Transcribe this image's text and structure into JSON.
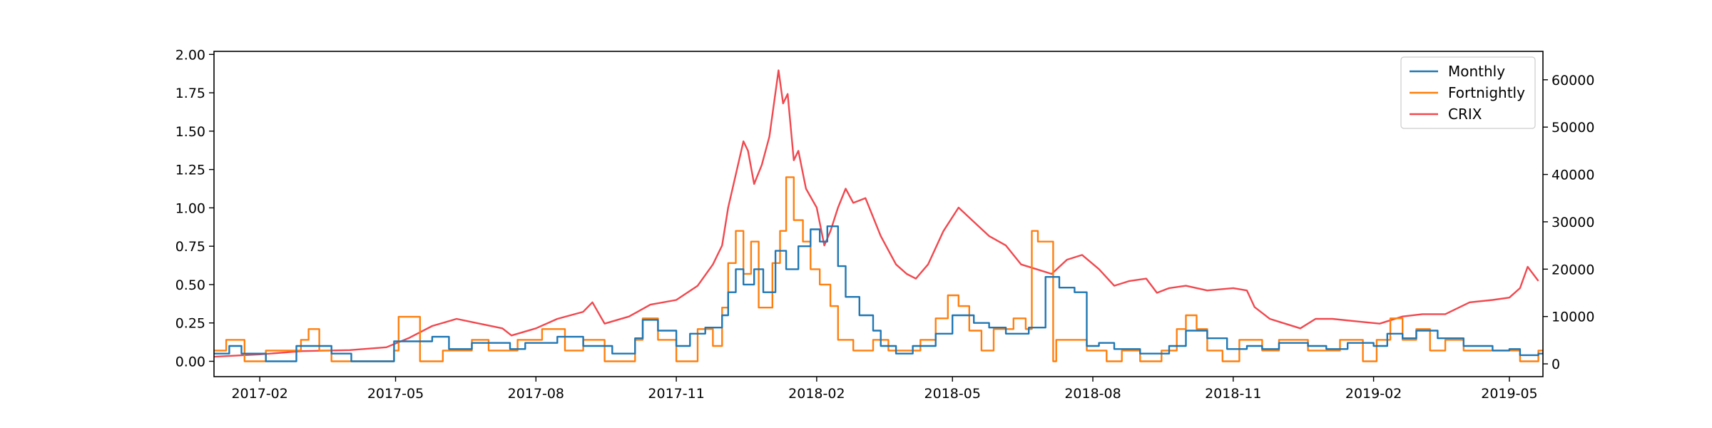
{
  "chart_data": {
    "type": "line",
    "title": "",
    "xlabel": "",
    "ylabel": "",
    "y2label": "",
    "grid": false,
    "legend_position": "top-right",
    "x_range": [
      "2017-01-02",
      "2019-05-23"
    ],
    "ylim": [
      -0.1,
      2.02
    ],
    "y2lim": [
      -2700,
      66000
    ],
    "x_ticks": [
      {
        "date": "2017-02-01",
        "label": "2017-02"
      },
      {
        "date": "2017-05-01",
        "label": "2017-05"
      },
      {
        "date": "2017-08-01",
        "label": "2017-08"
      },
      {
        "date": "2017-11-01",
        "label": "2017-11"
      },
      {
        "date": "2018-02-01",
        "label": "2018-02"
      },
      {
        "date": "2018-05-01",
        "label": "2018-05"
      },
      {
        "date": "2018-08-01",
        "label": "2018-08"
      },
      {
        "date": "2018-11-01",
        "label": "2018-11"
      },
      {
        "date": "2019-02-01",
        "label": "2019-02"
      },
      {
        "date": "2019-05-01",
        "label": "2019-05"
      }
    ],
    "y_ticks": [
      {
        "value": 0,
        "label": "0.00"
      },
      {
        "value": 0.25,
        "label": "0.25"
      },
      {
        "value": 0.5,
        "label": "0.50"
      },
      {
        "value": 0.75,
        "label": "0.75"
      },
      {
        "value": 1.0,
        "label": "1.00"
      },
      {
        "value": 1.25,
        "label": "1.25"
      },
      {
        "value": 1.5,
        "label": "1.50"
      },
      {
        "value": 1.75,
        "label": "1.75"
      },
      {
        "value": 2.0,
        "label": "2.00"
      }
    ],
    "y2_ticks": [
      {
        "value": 0,
        "label": "0"
      },
      {
        "value": 10000,
        "label": "10000"
      },
      {
        "value": 20000,
        "label": "20000"
      },
      {
        "value": 30000,
        "label": "30000"
      },
      {
        "value": 40000,
        "label": "40000"
      },
      {
        "value": 50000,
        "label": "50000"
      },
      {
        "value": 60000,
        "label": "60000"
      }
    ],
    "series": [
      {
        "name": "Monthly",
        "color": "#1f77b4",
        "axis": "left",
        "step": true,
        "points": [
          [
            "2017-01-02",
            0.05
          ],
          [
            "2017-01-12",
            0.1
          ],
          [
            "2017-01-20",
            0.05
          ],
          [
            "2017-02-05",
            0.0
          ],
          [
            "2017-02-25",
            0.1
          ],
          [
            "2017-03-20",
            0.05
          ],
          [
            "2017-04-02",
            0.0
          ],
          [
            "2017-04-30",
            0.13
          ],
          [
            "2017-05-25",
            0.16
          ],
          [
            "2017-06-05",
            0.08
          ],
          [
            "2017-06-20",
            0.12
          ],
          [
            "2017-07-15",
            0.08
          ],
          [
            "2017-07-25",
            0.12
          ],
          [
            "2017-08-15",
            0.16
          ],
          [
            "2017-09-01",
            0.1
          ],
          [
            "2017-09-20",
            0.05
          ],
          [
            "2017-10-05",
            0.15
          ],
          [
            "2017-10-10",
            0.27
          ],
          [
            "2017-10-20",
            0.2
          ],
          [
            "2017-11-01",
            0.1
          ],
          [
            "2017-11-10",
            0.18
          ],
          [
            "2017-11-20",
            0.22
          ],
          [
            "2017-12-01",
            0.3
          ],
          [
            "2017-12-05",
            0.45
          ],
          [
            "2017-12-10",
            0.6
          ],
          [
            "2017-12-15",
            0.5
          ],
          [
            "2017-12-22",
            0.6
          ],
          [
            "2017-12-28",
            0.45
          ],
          [
            "2018-01-05",
            0.72
          ],
          [
            "2018-01-12",
            0.6
          ],
          [
            "2018-01-20",
            0.75
          ],
          [
            "2018-01-28",
            0.86
          ],
          [
            "2018-02-03",
            0.78
          ],
          [
            "2018-02-08",
            0.88
          ],
          [
            "2018-02-15",
            0.62
          ],
          [
            "2018-02-20",
            0.42
          ],
          [
            "2018-03-01",
            0.3
          ],
          [
            "2018-03-10",
            0.2
          ],
          [
            "2018-03-15",
            0.1
          ],
          [
            "2018-03-25",
            0.05
          ],
          [
            "2018-04-05",
            0.1
          ],
          [
            "2018-04-20",
            0.18
          ],
          [
            "2018-05-01",
            0.3
          ],
          [
            "2018-05-15",
            0.25
          ],
          [
            "2018-05-25",
            0.22
          ],
          [
            "2018-06-05",
            0.18
          ],
          [
            "2018-06-20",
            0.22
          ],
          [
            "2018-07-01",
            0.55
          ],
          [
            "2018-07-10",
            0.48
          ],
          [
            "2018-07-20",
            0.45
          ],
          [
            "2018-07-28",
            0.1
          ],
          [
            "2018-08-05",
            0.12
          ],
          [
            "2018-08-15",
            0.08
          ],
          [
            "2018-09-01",
            0.05
          ],
          [
            "2018-09-20",
            0.1
          ],
          [
            "2018-10-01",
            0.2
          ],
          [
            "2018-10-15",
            0.15
          ],
          [
            "2018-10-28",
            0.08
          ],
          [
            "2018-11-10",
            0.1
          ],
          [
            "2018-11-20",
            0.08
          ],
          [
            "2018-12-01",
            0.12
          ],
          [
            "2018-12-20",
            0.1
          ],
          [
            "2019-01-01",
            0.08
          ],
          [
            "2019-01-15",
            0.12
          ],
          [
            "2019-02-01",
            0.1
          ],
          [
            "2019-02-10",
            0.18
          ],
          [
            "2019-02-20",
            0.15
          ],
          [
            "2019-03-01",
            0.2
          ],
          [
            "2019-03-15",
            0.15
          ],
          [
            "2019-04-01",
            0.1
          ],
          [
            "2019-04-20",
            0.07
          ],
          [
            "2019-05-01",
            0.08
          ],
          [
            "2019-05-08",
            0.04
          ],
          [
            "2019-05-20",
            0.05
          ]
        ]
      },
      {
        "name": "Fortnightly",
        "color": "#ff7f0e",
        "axis": "left",
        "step": true,
        "points": [
          [
            "2017-01-02",
            0.07
          ],
          [
            "2017-01-10",
            0.14
          ],
          [
            "2017-01-22",
            0.0
          ],
          [
            "2017-02-05",
            0.07
          ],
          [
            "2017-02-28",
            0.14
          ],
          [
            "2017-03-05",
            0.21
          ],
          [
            "2017-03-12",
            0.07
          ],
          [
            "2017-03-20",
            0.0
          ],
          [
            "2017-04-30",
            0.07
          ],
          [
            "2017-05-03",
            0.29
          ],
          [
            "2017-05-17",
            0.0
          ],
          [
            "2017-06-01",
            0.07
          ],
          [
            "2017-06-20",
            0.14
          ],
          [
            "2017-07-01",
            0.07
          ],
          [
            "2017-07-20",
            0.14
          ],
          [
            "2017-08-05",
            0.21
          ],
          [
            "2017-08-20",
            0.07
          ],
          [
            "2017-09-01",
            0.14
          ],
          [
            "2017-09-15",
            0.0
          ],
          [
            "2017-10-05",
            0.14
          ],
          [
            "2017-10-10",
            0.28
          ],
          [
            "2017-10-20",
            0.14
          ],
          [
            "2017-11-01",
            0.0
          ],
          [
            "2017-11-15",
            0.21
          ],
          [
            "2017-11-25",
            0.1
          ],
          [
            "2017-12-01",
            0.35
          ],
          [
            "2017-12-05",
            0.64
          ],
          [
            "2017-12-10",
            0.85
          ],
          [
            "2017-12-15",
            0.57
          ],
          [
            "2017-12-20",
            0.78
          ],
          [
            "2017-12-25",
            0.35
          ],
          [
            "2018-01-03",
            0.64
          ],
          [
            "2018-01-08",
            0.85
          ],
          [
            "2018-01-12",
            1.2
          ],
          [
            "2018-01-17",
            0.92
          ],
          [
            "2018-01-23",
            0.78
          ],
          [
            "2018-01-28",
            0.6
          ],
          [
            "2018-02-03",
            0.5
          ],
          [
            "2018-02-10",
            0.36
          ],
          [
            "2018-02-15",
            0.14
          ],
          [
            "2018-02-25",
            0.07
          ],
          [
            "2018-03-10",
            0.14
          ],
          [
            "2018-03-20",
            0.07
          ],
          [
            "2018-04-10",
            0.14
          ],
          [
            "2018-04-20",
            0.28
          ],
          [
            "2018-04-28",
            0.43
          ],
          [
            "2018-05-05",
            0.36
          ],
          [
            "2018-05-12",
            0.2
          ],
          [
            "2018-05-20",
            0.07
          ],
          [
            "2018-05-28",
            0.21
          ],
          [
            "2018-06-10",
            0.28
          ],
          [
            "2018-06-18",
            0.21
          ],
          [
            "2018-06-22",
            0.85
          ],
          [
            "2018-06-26",
            0.78
          ],
          [
            "2018-07-02",
            0.78
          ],
          [
            "2018-07-06",
            0.0
          ],
          [
            "2018-07-08",
            0.14
          ],
          [
            "2018-07-20",
            0.14
          ],
          [
            "2018-07-28",
            0.07
          ],
          [
            "2018-08-10",
            0.0
          ],
          [
            "2018-08-20",
            0.07
          ],
          [
            "2018-09-01",
            0.0
          ],
          [
            "2018-09-15",
            0.07
          ],
          [
            "2018-09-25",
            0.21
          ],
          [
            "2018-10-01",
            0.3
          ],
          [
            "2018-10-08",
            0.21
          ],
          [
            "2018-10-15",
            0.07
          ],
          [
            "2018-10-25",
            0.0
          ],
          [
            "2018-11-05",
            0.14
          ],
          [
            "2018-11-20",
            0.07
          ],
          [
            "2018-12-01",
            0.14
          ],
          [
            "2018-12-20",
            0.07
          ],
          [
            "2019-01-10",
            0.14
          ],
          [
            "2019-01-25",
            0.0
          ],
          [
            "2019-02-03",
            0.14
          ],
          [
            "2019-02-12",
            0.28
          ],
          [
            "2019-02-20",
            0.14
          ],
          [
            "2019-03-01",
            0.21
          ],
          [
            "2019-03-10",
            0.07
          ],
          [
            "2019-03-20",
            0.14
          ],
          [
            "2019-04-01",
            0.07
          ],
          [
            "2019-04-20",
            0.07
          ],
          [
            "2019-05-01",
            0.07
          ],
          [
            "2019-05-08",
            0.0
          ],
          [
            "2019-05-20",
            0.07
          ]
        ]
      },
      {
        "name": "CRIX",
        "color": "#f0484e",
        "axis": "right",
        "step": false,
        "points": [
          [
            "2017-01-02",
            1500
          ],
          [
            "2017-02-01",
            2000
          ],
          [
            "2017-03-01",
            2700
          ],
          [
            "2017-04-01",
            2900
          ],
          [
            "2017-04-25",
            3500
          ],
          [
            "2017-05-10",
            5500
          ],
          [
            "2017-05-25",
            8000
          ],
          [
            "2017-06-10",
            9500
          ],
          [
            "2017-06-25",
            8500
          ],
          [
            "2017-07-10",
            7500
          ],
          [
            "2017-07-16",
            6000
          ],
          [
            "2017-08-01",
            7500
          ],
          [
            "2017-08-15",
            9500
          ],
          [
            "2017-09-01",
            11000
          ],
          [
            "2017-09-07",
            13000
          ],
          [
            "2017-09-15",
            8500
          ],
          [
            "2017-10-01",
            10000
          ],
          [
            "2017-10-15",
            12500
          ],
          [
            "2017-11-01",
            13500
          ],
          [
            "2017-11-15",
            16500
          ],
          [
            "2017-11-25",
            21000
          ],
          [
            "2017-12-01",
            25000
          ],
          [
            "2017-12-05",
            33000
          ],
          [
            "2017-12-10",
            40000
          ],
          [
            "2017-12-15",
            47000
          ],
          [
            "2017-12-18",
            45000
          ],
          [
            "2017-12-22",
            38000
          ],
          [
            "2017-12-27",
            42000
          ],
          [
            "2018-01-01",
            48000
          ],
          [
            "2018-01-04",
            55000
          ],
          [
            "2018-01-07",
            62000
          ],
          [
            "2018-01-10",
            55000
          ],
          [
            "2018-01-13",
            57000
          ],
          [
            "2018-01-17",
            43000
          ],
          [
            "2018-01-20",
            45000
          ],
          [
            "2018-01-25",
            37000
          ],
          [
            "2018-02-01",
            33000
          ],
          [
            "2018-02-06",
            25000
          ],
          [
            "2018-02-10",
            28000
          ],
          [
            "2018-02-15",
            33000
          ],
          [
            "2018-02-20",
            37000
          ],
          [
            "2018-02-25",
            34000
          ],
          [
            "2018-03-05",
            35000
          ],
          [
            "2018-03-15",
            27000
          ],
          [
            "2018-03-25",
            21000
          ],
          [
            "2018-04-01",
            19000
          ],
          [
            "2018-04-07",
            18000
          ],
          [
            "2018-04-15",
            21000
          ],
          [
            "2018-04-25",
            28000
          ],
          [
            "2018-05-05",
            33000
          ],
          [
            "2018-05-15",
            30000
          ],
          [
            "2018-05-25",
            27000
          ],
          [
            "2018-06-05",
            25000
          ],
          [
            "2018-06-15",
            21000
          ],
          [
            "2018-06-25",
            20000
          ],
          [
            "2018-07-05",
            19000
          ],
          [
            "2018-07-15",
            22000
          ],
          [
            "2018-07-25",
            23000
          ],
          [
            "2018-08-05",
            20000
          ],
          [
            "2018-08-15",
            16500
          ],
          [
            "2018-08-25",
            17500
          ],
          [
            "2018-09-05",
            18000
          ],
          [
            "2018-09-12",
            15000
          ],
          [
            "2018-09-20",
            16000
          ],
          [
            "2018-10-01",
            16500
          ],
          [
            "2018-10-15",
            15500
          ],
          [
            "2018-11-01",
            16000
          ],
          [
            "2018-11-10",
            15500
          ],
          [
            "2018-11-15",
            12000
          ],
          [
            "2018-11-25",
            9500
          ],
          [
            "2018-12-05",
            8500
          ],
          [
            "2018-12-15",
            7500
          ],
          [
            "2018-12-25",
            9500
          ],
          [
            "2019-01-05",
            9500
          ],
          [
            "2019-01-20",
            9000
          ],
          [
            "2019-02-05",
            8500
          ],
          [
            "2019-02-20",
            10000
          ],
          [
            "2019-03-05",
            10500
          ],
          [
            "2019-03-20",
            10500
          ],
          [
            "2019-04-05",
            13000
          ],
          [
            "2019-04-20",
            13500
          ],
          [
            "2019-05-01",
            14000
          ],
          [
            "2019-05-08",
            16000
          ],
          [
            "2019-05-13",
            20500
          ],
          [
            "2019-05-20",
            17500
          ]
        ]
      }
    ]
  }
}
